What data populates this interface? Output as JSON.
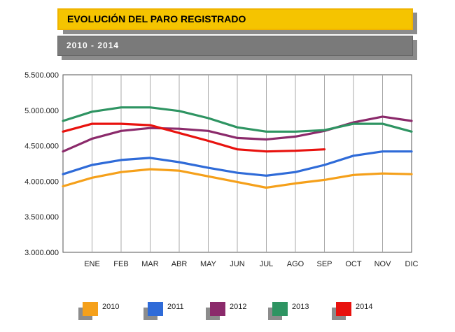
{
  "header": {
    "title": "EVOLUCIÓN DEL PARO REGISTRADO",
    "subtitle": "2010 - 2014"
  },
  "chart_data": {
    "type": "line",
    "title": "EVOLUCIÓN DEL PARO REGISTRADO",
    "subtitle": "2010 - 2014",
    "xlabel": "",
    "ylabel": "",
    "categories": [
      "ENE",
      "FEB",
      "MAR",
      "ABR",
      "MAY",
      "JUN",
      "JUL",
      "AGO",
      "SEP",
      "OCT",
      "NOV",
      "DIC"
    ],
    "x_axis_extra_start": true,
    "y_ticks": [
      3000000,
      3500000,
      4000000,
      4500000,
      5000000,
      5500000
    ],
    "y_tick_labels": [
      "3.000.000",
      "3.500.000",
      "4.000.000",
      "4.500.000",
      "5.000.000",
      "5.500.000"
    ],
    "ylim": [
      3000000,
      5500000
    ],
    "grid": "vertical",
    "legend_position": "bottom",
    "start_values": {
      "2010": 3930000,
      "2011": 4100000,
      "2012": 4420000,
      "2013": 4850000,
      "2014": 4700000
    },
    "series": [
      {
        "name": "2010",
        "color": "#f5a01a",
        "values": [
          4050000,
          4130000,
          4170000,
          4150000,
          4070000,
          3990000,
          3910000,
          3970000,
          4020000,
          4090000,
          4110000,
          4100000
        ]
      },
      {
        "name": "2011",
        "color": "#2f6bd8",
        "values": [
          4230000,
          4300000,
          4330000,
          4270000,
          4190000,
          4120000,
          4080000,
          4130000,
          4230000,
          4360000,
          4420000,
          4420000
        ]
      },
      {
        "name": "2012",
        "color": "#8b2a6b",
        "values": [
          4600000,
          4710000,
          4750000,
          4740000,
          4710000,
          4610000,
          4590000,
          4630000,
          4710000,
          4830000,
          4910000,
          4850000
        ]
      },
      {
        "name": "2013",
        "color": "#2e9462",
        "values": [
          4980000,
          5040000,
          5040000,
          4990000,
          4890000,
          4760000,
          4700000,
          4700000,
          4720000,
          4810000,
          4810000,
          4700000
        ]
      },
      {
        "name": "2014",
        "color": "#e8120e",
        "values": [
          4810000,
          4810000,
          4790000,
          4680000,
          4570000,
          4450000,
          4420000,
          4430000,
          4450000,
          null,
          null,
          null
        ]
      }
    ]
  }
}
